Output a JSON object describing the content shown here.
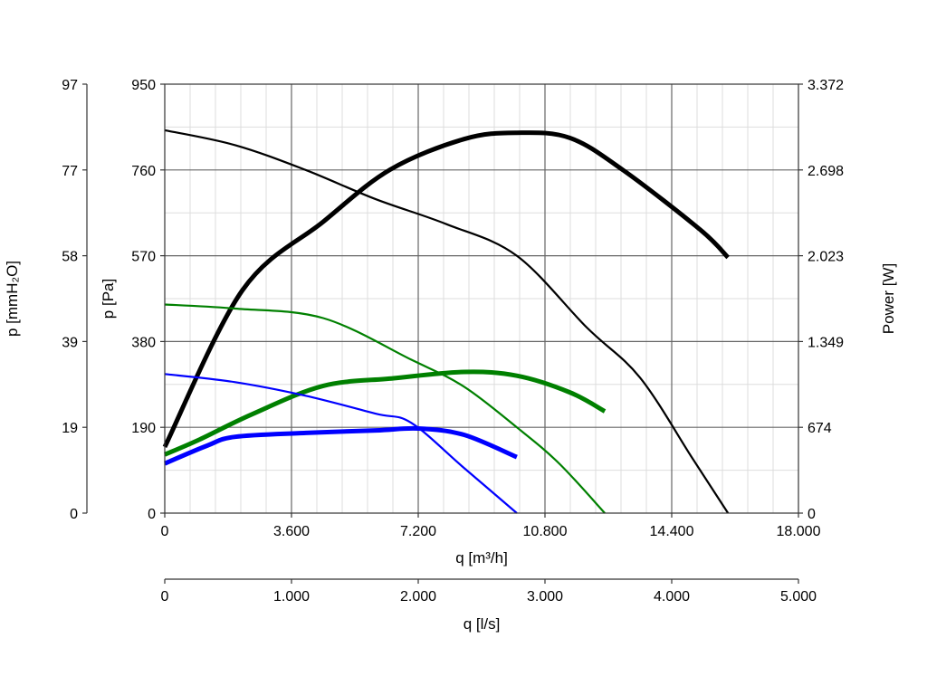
{
  "chart_data": {
    "type": "line",
    "title": "",
    "grid": true,
    "x_axes": {
      "primary": {
        "label": "q [m³/h]",
        "range": [
          0,
          18000
        ],
        "ticks": [
          "0",
          "3.600",
          "7.200",
          "10.800",
          "14.400",
          "18.000"
        ]
      },
      "secondary": {
        "label": "q [l/s]",
        "range": [
          0,
          5000
        ],
        "ticks": [
          "0",
          "1.000",
          "2.000",
          "3.000",
          "4.000",
          "5.000"
        ]
      }
    },
    "y_axes": {
      "pressure_mmH2O": {
        "label": "p [mmH₂O]",
        "range": [
          0,
          97
        ],
        "ticks": [
          "0",
          "19",
          "39",
          "58",
          "77",
          "97"
        ]
      },
      "pressure_pa": {
        "label": "p [Pa]",
        "range": [
          0,
          950
        ],
        "ticks": [
          "0",
          "190",
          "380",
          "570",
          "760",
          "950"
        ]
      },
      "power": {
        "label": "Power [W]",
        "range": [
          0,
          3372
        ],
        "ticks": [
          "0",
          "674",
          "1.349",
          "2.023",
          "2.698",
          "3.372"
        ]
      }
    },
    "series": [
      {
        "color": "#000000",
        "kind": "pressure",
        "axis": "pa",
        "x": [
          0,
          2000,
          4000,
          6000,
          8000,
          10000,
          12000,
          13500,
          15000,
          16000
        ],
        "y": [
          848,
          815,
          760,
          695,
          640,
          570,
          410,
          300,
          120,
          0
        ]
      },
      {
        "color": "#000000",
        "kind": "power",
        "axis": "power",
        "x": [
          0,
          2200,
          4500,
          6400,
          8500,
          10000,
          11500,
          13000,
          15200,
          16000
        ],
        "y": [
          520,
          1750,
          2290,
          2700,
          2940,
          2990,
          2950,
          2700,
          2230,
          2010
        ]
      },
      {
        "color": "#008000",
        "kind": "pressure",
        "axis": "pa",
        "x": [
          0,
          2000,
          4500,
          7000,
          8500,
          10000,
          11200,
          12500
        ],
        "y": [
          462,
          453,
          432,
          340,
          280,
          190,
          110,
          0
        ]
      },
      {
        "color": "#008000",
        "kind": "power",
        "axis": "power",
        "x": [
          0,
          1000,
          2500,
          4500,
          6500,
          8500,
          10000,
          11500,
          12500
        ],
        "y": [
          460,
          580,
          780,
          1000,
          1060,
          1110,
          1080,
          950,
          800
        ]
      },
      {
        "color": "#0000ff",
        "kind": "pressure",
        "axis": "pa",
        "x": [
          0,
          2000,
          4000,
          6000,
          7000,
          8500,
          10000
        ],
        "y": [
          308,
          290,
          260,
          220,
          200,
          100,
          0
        ]
      },
      {
        "color": "#0000ff",
        "kind": "power",
        "axis": "power",
        "x": [
          0,
          1200,
          2000,
          4000,
          6000,
          7200,
          8500,
          10000
        ],
        "y": [
          390,
          530,
          600,
          630,
          650,
          665,
          615,
          440
        ]
      }
    ]
  }
}
